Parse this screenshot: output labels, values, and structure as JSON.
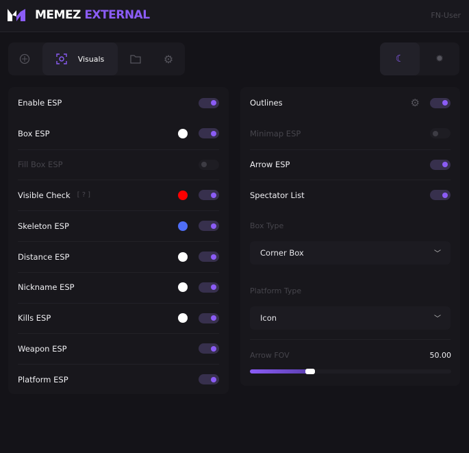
{
  "header": {
    "brand_white": "MEMEZ",
    "brand_accent": "EXTERNAL",
    "user": "FN-User",
    "accent": "#8b5cf6"
  },
  "tabs": [
    {
      "icon": "crosshair-icon"
    },
    {
      "icon": "eye-scan-icon",
      "label": "Visuals",
      "active": true
    },
    {
      "icon": "folder-icon"
    },
    {
      "icon": "gear-icon"
    }
  ],
  "theme": {
    "dark": "moon-icon",
    "light": "sun-icon",
    "selected": "dark"
  },
  "left": [
    {
      "label": "Enable ESP",
      "on": true
    },
    {
      "label": "Box ESP",
      "on": true,
      "color": "#ffffff"
    },
    {
      "label": "Fill Box ESP",
      "on": false,
      "disabled": true
    },
    {
      "label": "Visible Check",
      "hint": "[ ? ]",
      "on": true,
      "color": "#ff0000"
    },
    {
      "label": "Skeleton ESP",
      "on": true,
      "color": "#4f6ef7"
    },
    {
      "label": "Distance ESP",
      "on": true,
      "color": "#ffffff"
    },
    {
      "label": "Nickname ESP",
      "on": true,
      "color": "#ffffff"
    },
    {
      "label": "Kills ESP",
      "on": true,
      "color": "#ffffff"
    },
    {
      "label": "Weapon ESP",
      "on": true
    },
    {
      "label": "Platform ESP",
      "on": true
    }
  ],
  "right": {
    "toggles": [
      {
        "label": "Outlines",
        "on": true,
        "gear": true
      },
      {
        "label": "Minimap ESP",
        "on": false,
        "disabled": true
      },
      {
        "label": "Arrow ESP",
        "on": true
      },
      {
        "label": "Spectator List",
        "on": true
      }
    ],
    "box_type": {
      "label": "Box Type",
      "value": "Corner Box"
    },
    "platform_type": {
      "label": "Platform Type",
      "value": "Icon"
    },
    "arrow_fov": {
      "label": "Arrow FOV",
      "value": "50.00",
      "fill_fraction": 0.3
    }
  }
}
